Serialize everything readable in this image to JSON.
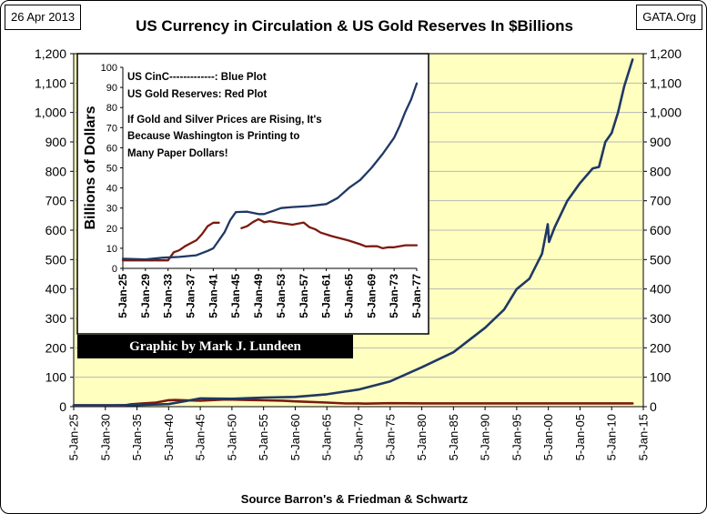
{
  "header": {
    "date": "26 Apr 2013",
    "source_site": "GATA.Org"
  },
  "footer": {
    "source": "Source Barron's & Friedman & Schwartz"
  },
  "credit": "Graphic by Mark J. Lundeen",
  "colors": {
    "plot_bg": "#ffffc0",
    "currency": "#1f3864",
    "gold": "#7b1a10",
    "grid": "#b8b8b8"
  },
  "chart_data": [
    {
      "type": "line",
      "title": "US Currency in Circulation & US Gold Reserves In $Billions",
      "xlabel": "",
      "ylabel": "",
      "x_ticks": [
        "5-Jan-25",
        "5-Jan-30",
        "5-Jan-35",
        "5-Jan-40",
        "5-Jan-45",
        "5-Jan-50",
        "5-Jan-55",
        "5-Jan-60",
        "5-Jan-65",
        "5-Jan-70",
        "5-Jan-75",
        "5-Jan-80",
        "5-Jan-85",
        "5-Jan-90",
        "5-Jan-95",
        "5-Jan-00",
        "5-Jan-05",
        "5-Jan-10",
        "5-Jan-15"
      ],
      "xlim": [
        1925,
        2015
      ],
      "ylim": [
        0,
        1200
      ],
      "y_ticks": [
        "0",
        "100",
        "200",
        "300",
        "400",
        "500",
        "600",
        "700",
        "800",
        "900",
        "1,000",
        "1,100",
        "1,200"
      ],
      "y_tick_values": [
        0,
        100,
        200,
        300,
        400,
        500,
        600,
        700,
        800,
        900,
        1000,
        1100,
        1200
      ],
      "grid": true,
      "series": [
        {
          "name": "US CinC",
          "color": "#1f3864",
          "x": [
            1925,
            1930,
            1935,
            1940,
            1943,
            1945,
            1950,
            1955,
            1960,
            1965,
            1970,
            1975,
            1980,
            1985,
            1990,
            1993,
            1995,
            1997,
            1999,
            1999.9,
            2000.1,
            2001,
            2003,
            2005,
            2007,
            2008,
            2009,
            2010,
            2011,
            2012,
            2013.3
          ],
          "y": [
            4.8,
            4.5,
            5.6,
            8.7,
            20,
            28,
            27,
            31,
            33,
            42,
            58,
            86,
            134,
            185,
            268,
            330,
            400,
            435,
            520,
            620,
            560,
            610,
            700,
            760,
            810,
            815,
            900,
            930,
            1000,
            1090,
            1180
          ]
        },
        {
          "name": "US Gold Reserves",
          "color": "#7b1a10",
          "x": [
            1925,
            1930,
            1933,
            1934,
            1936,
            1938,
            1940,
            1941,
            1945,
            1949,
            1952,
            1955,
            1958,
            1960,
            1965,
            1968,
            1970,
            1971,
            1975,
            1980,
            1990,
            2000,
            2010,
            2013.3
          ],
          "y": [
            4,
            4.2,
            4,
            8,
            11,
            14,
            22,
            22.7,
            20,
            24.5,
            23,
            21.5,
            20.5,
            17.8,
            13.8,
            10.9,
            11,
            10.2,
            11.6,
            11.2,
            11.06,
            11.05,
            11.04,
            11.04
          ]
        }
      ]
    },
    {
      "type": "line",
      "title": "",
      "xlabel": "",
      "ylabel": "Billions of Dollars",
      "x_ticks": [
        "5-Jan-25",
        "5-Jan-29",
        "5-Jan-33",
        "5-Jan-37",
        "5-Jan-41",
        "5-Jan-45",
        "5-Jan-49",
        "5-Jan-53",
        "5-Jan-57",
        "5-Jan-61",
        "5-Jan-65",
        "5-Jan-69",
        "5-Jan-73",
        "5-Jan-77"
      ],
      "xlim": [
        1925,
        1977
      ],
      "ylim": [
        0,
        100
      ],
      "y_ticks": [
        "0",
        "10",
        "20",
        "30",
        "40",
        "50",
        "60",
        "70",
        "80",
        "90",
        "100"
      ],
      "y_tick_values": [
        0,
        10,
        20,
        30,
        40,
        50,
        60,
        70,
        80,
        90,
        100
      ],
      "grid": false,
      "annotations": [
        "US CinC-------------: Blue Plot",
        "US Gold Reserves: Red Plot",
        "If Gold and Silver Prices are Rising, It's",
        "Because Washington is Printing to",
        "Many Paper Dollars!"
      ],
      "series": [
        {
          "name": "US CinC",
          "color": "#1f3864",
          "x": [
            1925,
            1929,
            1932,
            1935,
            1938,
            1940,
            1941,
            1942,
            1943,
            1944,
            1945,
            1947,
            1949,
            1950,
            1952,
            1953,
            1955,
            1958,
            1961,
            1963,
            1965,
            1967,
            1969,
            1971,
            1973,
            1974,
            1975,
            1976,
            1977
          ],
          "y": [
            4.8,
            4.5,
            5.3,
            5.7,
            6.5,
            8.7,
            10,
            14,
            18,
            24,
            28,
            28.2,
            27,
            27,
            29,
            30,
            30.5,
            31,
            32,
            35,
            40,
            44,
            50,
            57,
            65,
            71,
            78,
            84,
            92
          ]
        },
        {
          "name": "US Gold Reserves",
          "color": "#7b1a10",
          "x": [
            1925,
            1929,
            1933,
            1934,
            1935,
            1936,
            1937,
            1938,
            1939,
            1940,
            1941,
            1942,
            1942.2,
            1946,
            1947,
            1948,
            1949,
            1950,
            1951,
            1952,
            1955,
            1957,
            1958,
            1959,
            1960,
            1962,
            1965,
            1967,
            1968,
            1969,
            1970,
            1971,
            1972,
            1973,
            1975,
            1977
          ],
          "y": [
            4,
            4,
            4,
            8,
            9,
            11,
            12.5,
            14,
            17,
            21,
            22.7,
            22.7,
            null,
            20,
            21,
            23,
            24.5,
            23,
            23.5,
            23,
            21.7,
            22.8,
            20.5,
            19.5,
            17.8,
            16,
            13.8,
            12,
            10.9,
            11,
            11,
            10,
            10.5,
            10.5,
            11.5,
            11.5
          ]
        }
      ]
    }
  ]
}
